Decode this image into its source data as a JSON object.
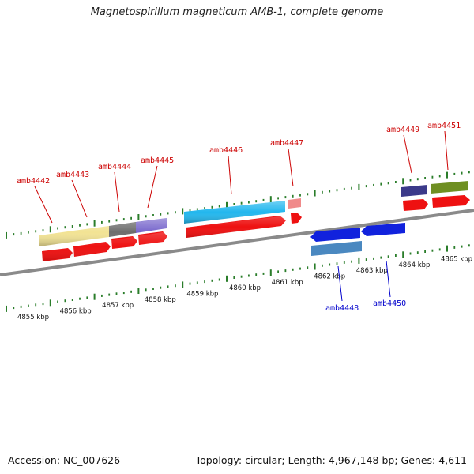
{
  "title": "Magnetospirillum magneticum AMB-1, complete genome",
  "footer": {
    "accession": "Accession: NC_007626",
    "topology": "Topology: circular; Length: 4,967,148 bp; Genes: 4,611"
  },
  "colors": {
    "forward_label": "#cc0000",
    "reverse_label": "#0000cc",
    "tick": "#2a7d2a",
    "backbone": "#8a8a8a",
    "forward_cds": "#ee1111",
    "reverse_cds": "#1122dd"
  },
  "scale": {
    "unit": "kbp",
    "labels": [
      "4855 kbp",
      "4856 kbp",
      "4857 kbp",
      "4858 kbp",
      "4859 kbp",
      "4860 kbp",
      "4861 kbp",
      "4862 kbp",
      "4863 kbp",
      "4864 kbp",
      "4865 kbp"
    ]
  },
  "genes": [
    {
      "id": "amb4442",
      "strand": "+",
      "feature_color": "#f2e394"
    },
    {
      "id": "amb4443",
      "strand": "+",
      "feature_color": "#f2e394"
    },
    {
      "id": "amb4444",
      "strand": "+",
      "feature_color": "#6d6d6d"
    },
    {
      "id": "amb4445",
      "strand": "+",
      "feature_color": "#7766cc"
    },
    {
      "id": "amb4446",
      "strand": "+",
      "feature_color": "#22b7ee"
    },
    {
      "id": "amb4447",
      "strand": "+",
      "feature_color": "#f08a8a"
    },
    {
      "id": "amb4448",
      "strand": "-",
      "feature_color": "#4a88c0"
    },
    {
      "id": "amb4449",
      "strand": "+",
      "feature_color": "#3b3a8a"
    },
    {
      "id": "amb4450",
      "strand": "-",
      "feature_color": "#1122dd"
    },
    {
      "id": "amb4451",
      "strand": "+",
      "feature_color": "#6f8f22"
    }
  ]
}
